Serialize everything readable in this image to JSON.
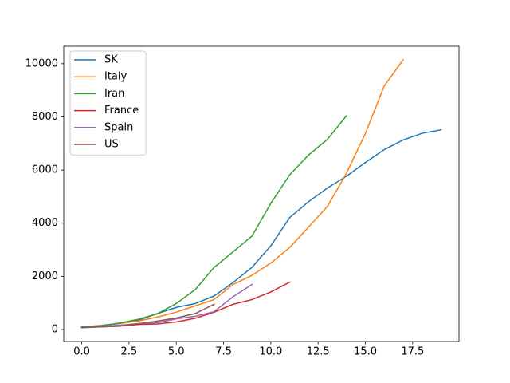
{
  "chart_data": {
    "type": "line",
    "x": [
      0,
      1,
      2,
      3,
      4,
      5,
      6,
      7,
      8,
      9,
      10,
      11,
      12,
      13,
      14,
      15,
      16,
      17,
      18,
      19
    ],
    "series": [
      {
        "name": "SK",
        "color": "#1f77b4",
        "values": [
          100,
          150,
          230,
          350,
          600,
          833,
          977,
          1261,
          1766,
          2337,
          3150,
          4212,
          4812,
          5328,
          5766,
          6284,
          6767,
          7134,
          7382,
          7513
        ]
      },
      {
        "name": "Italy",
        "color": "#ff7f0e",
        "values": [
          79,
          157,
          229,
          323,
          470,
          655,
          889,
          1128,
          1694,
          2036,
          2502,
          3089,
          3858,
          4636,
          5883,
          7375,
          9172,
          10149,
          null,
          null
        ]
      },
      {
        "name": "Iran",
        "color": "#2ca02c",
        "values": [
          95,
          139,
          245,
          388,
          593,
          978,
          1501,
          2336,
          2922,
          3513,
          4747,
          5823,
          6566,
          7161,
          8042,
          null,
          null,
          null,
          null,
          null
        ]
      },
      {
        "name": "France",
        "color": "#d62728",
        "values": [
          73,
          100,
          130,
          191,
          212,
          285,
          423,
          653,
          949,
          1126,
          1412,
          1784,
          null,
          null,
          null,
          null,
          null,
          null,
          null,
          null
        ]
      },
      {
        "name": "Spain",
        "color": "#9467bd",
        "values": [
          84,
          120,
          165,
          222,
          259,
          400,
          500,
          673,
          1231,
          1695,
          null,
          null,
          null,
          null,
          null,
          null,
          null,
          null,
          null,
          null
        ]
      },
      {
        "name": "US",
        "color": "#8c564b",
        "values": [
          70,
          100,
          124,
          221,
          319,
          435,
          600,
          950,
          null,
          null,
          null,
          null,
          null,
          null,
          null,
          null,
          null,
          null,
          null,
          null
        ]
      }
    ],
    "xlim": [
      -0.95,
      19.95
    ],
    "ylim": [
      -450,
      10655
    ],
    "xticks": [
      {
        "value": 0,
        "label": "0.0"
      },
      {
        "value": 2.5,
        "label": "2.5"
      },
      {
        "value": 5,
        "label": "5.0"
      },
      {
        "value": 7.5,
        "label": "7.5"
      },
      {
        "value": 10,
        "label": "10.0"
      },
      {
        "value": 12.5,
        "label": "12.5"
      },
      {
        "value": 15,
        "label": "15.0"
      },
      {
        "value": 17.5,
        "label": "17.5"
      }
    ],
    "yticks": [
      0,
      2000,
      4000,
      6000,
      8000,
      10000
    ],
    "legend": "upper-left"
  }
}
